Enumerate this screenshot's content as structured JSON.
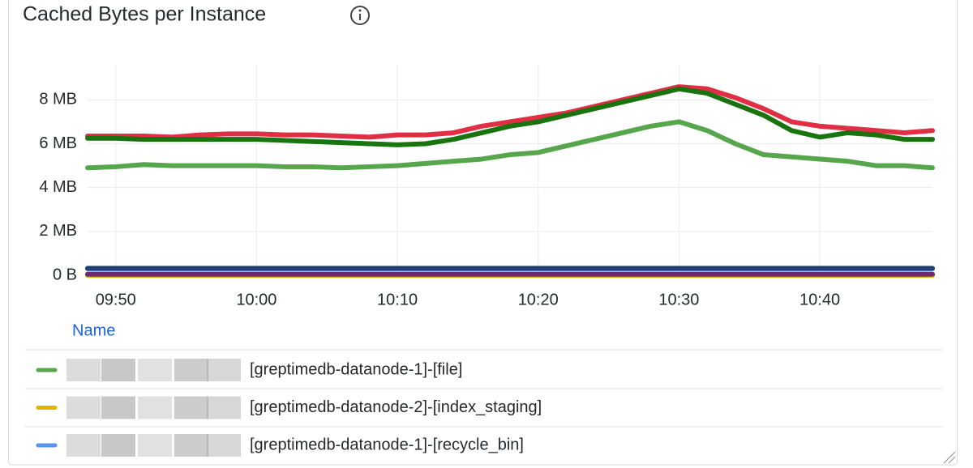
{
  "chart_data": {
    "type": "line",
    "title": "Cached Bytes per Instance",
    "legend_header": "Name",
    "x": [
      "09:48",
      "09:50",
      "09:52",
      "09:54",
      "09:56",
      "09:58",
      "10:00",
      "10:02",
      "10:04",
      "10:06",
      "10:08",
      "10:10",
      "10:12",
      "10:14",
      "10:16",
      "10:18",
      "10:20",
      "10:22",
      "10:24",
      "10:26",
      "10:28",
      "10:30",
      "10:32",
      "10:34",
      "10:36",
      "10:38",
      "10:40",
      "10:42",
      "10:44",
      "10:46",
      "10:48"
    ],
    "xlim": [
      "09:48",
      "10:48"
    ],
    "xticks": [
      "09:50",
      "10:00",
      "10:10",
      "10:20",
      "10:30",
      "10:40"
    ],
    "ylim": [
      0,
      9.6
    ],
    "yticks": [
      {
        "value": 0,
        "label": "0 B"
      },
      {
        "value": 2,
        "label": "2 MB"
      },
      {
        "value": 4,
        "label": "4 MB"
      },
      {
        "value": 6,
        "label": "6 MB"
      },
      {
        "value": 8,
        "label": "8 MB"
      }
    ],
    "grid": true,
    "series": [
      {
        "name": "[greptimedb-datanode-1]-[file]",
        "color": "#56a64b",
        "values": [
          4.9,
          4.95,
          5.05,
          5.0,
          5.0,
          5.0,
          5.0,
          4.95,
          4.95,
          4.9,
          4.95,
          5.0,
          5.1,
          5.2,
          5.3,
          5.5,
          5.6,
          5.9,
          6.2,
          6.5,
          6.8,
          7.0,
          6.6,
          6.0,
          5.5,
          5.4,
          5.3,
          5.2,
          5.0,
          5.0,
          4.9
        ]
      },
      {
        "name": "[greptimedb-datanode-2]-[index_staging]",
        "color": "#e0b400",
        "values": [
          0,
          0,
          0,
          0,
          0,
          0,
          0,
          0,
          0,
          0,
          0,
          0,
          0,
          0,
          0,
          0,
          0,
          0,
          0,
          0,
          0,
          0,
          0,
          0,
          0,
          0,
          0,
          0,
          0,
          0,
          0
        ]
      },
      {
        "name": "[greptimedb-datanode-1]-[recycle_bin]",
        "color": "#5794f2",
        "values": [
          0.3,
          0.3,
          0.3,
          0.3,
          0.3,
          0.3,
          0.3,
          0.3,
          0.3,
          0.3,
          0.3,
          0.3,
          0.3,
          0.3,
          0.3,
          0.3,
          0.3,
          0.3,
          0.3,
          0.3,
          0.3,
          0.3,
          0.3,
          0.3,
          0.3,
          0.3,
          0.3,
          0.3,
          0.3,
          0.3,
          0.3
        ]
      },
      {
        "color": "#e02f44",
        "values": [
          6.35,
          6.35,
          6.35,
          6.3,
          6.4,
          6.45,
          6.45,
          6.4,
          6.4,
          6.35,
          6.3,
          6.4,
          6.4,
          6.5,
          6.8,
          7.0,
          7.2,
          7.4,
          7.7,
          8.0,
          8.3,
          8.6,
          8.5,
          8.1,
          7.6,
          7.0,
          6.8,
          6.7,
          6.6,
          6.5,
          6.6
        ]
      },
      {
        "color": "#19730e",
        "values": [
          6.25,
          6.25,
          6.2,
          6.2,
          6.2,
          6.2,
          6.2,
          6.15,
          6.1,
          6.05,
          6.0,
          5.95,
          6.0,
          6.2,
          6.5,
          6.8,
          7.0,
          7.3,
          7.6,
          7.9,
          8.2,
          8.5,
          8.3,
          7.8,
          7.3,
          6.6,
          6.3,
          6.5,
          6.4,
          6.2,
          6.2
        ]
      },
      {
        "color": "#1f3f78",
        "values": [
          0.32,
          0.32,
          0.32,
          0.32,
          0.32,
          0.32,
          0.32,
          0.32,
          0.32,
          0.32,
          0.32,
          0.32,
          0.32,
          0.32,
          0.32,
          0.32,
          0.32,
          0.32,
          0.32,
          0.32,
          0.32,
          0.32,
          0.32,
          0.32,
          0.32,
          0.32,
          0.32,
          0.32,
          0.32,
          0.32,
          0.32
        ]
      },
      {
        "color": "#6e2a6e",
        "values": [
          0.05,
          0.05,
          0.05,
          0.05,
          0.05,
          0.05,
          0.05,
          0.05,
          0.05,
          0.05,
          0.05,
          0.05,
          0.05,
          0.05,
          0.05,
          0.05,
          0.05,
          0.05,
          0.05,
          0.05,
          0.05,
          0.05,
          0.05,
          0.05,
          0.05,
          0.05,
          0.05,
          0.05,
          0.05,
          0.05,
          0.05
        ]
      }
    ]
  }
}
